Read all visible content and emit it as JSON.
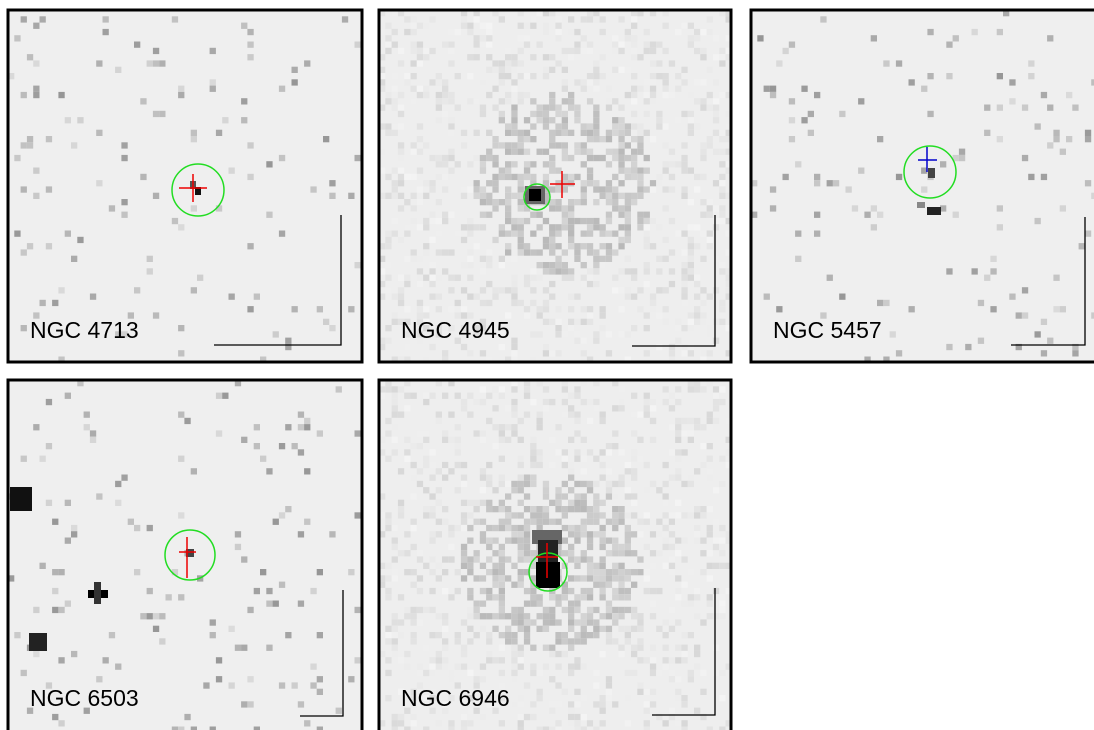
{
  "panels": [
    {
      "label": "NGC 4713"
    },
    {
      "label": "NGC 4945"
    },
    {
      "label": "NGC 5457"
    },
    {
      "label": "NGC 6503"
    },
    {
      "label": "NGC 6946"
    }
  ]
}
